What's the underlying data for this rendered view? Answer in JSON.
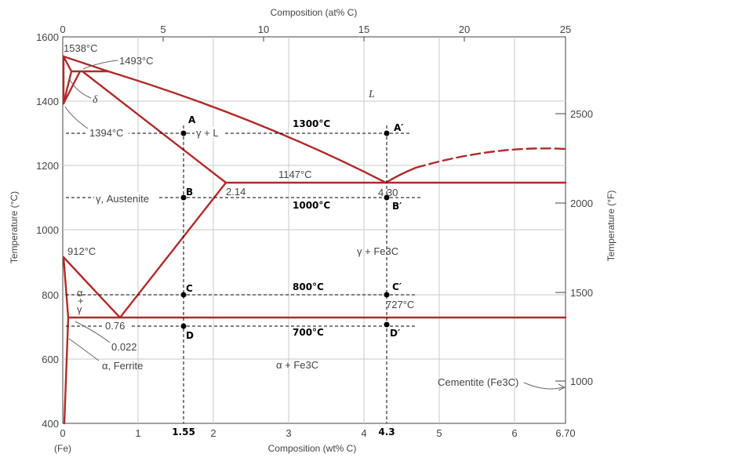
{
  "axes": {
    "top_label": "Composition (at% C)",
    "bottom_label": "Composition (wt% C)",
    "left_label": "Temperature (°C)",
    "right_label": "Temperature (°F)",
    "fe_label": "(Fe)",
    "top_ticks": [
      "0",
      "5",
      "10",
      "15",
      "20",
      "25"
    ],
    "bottom_ticks": [
      "0",
      "1",
      "2",
      "3",
      "4",
      "5",
      "6",
      "6.70"
    ],
    "bottom_ticks_bold": [
      "1.55",
      "4.3"
    ],
    "left_ticks": [
      "1600",
      "1400",
      "1200",
      "1000",
      "800",
      "600",
      "400"
    ],
    "right_ticks": [
      "2500",
      "2000",
      "1500",
      "1000"
    ]
  },
  "labels": {
    "t1538": "1538°C",
    "t1493": "1493°C",
    "t1394": "1394°C",
    "delta": "δ",
    "liquid": "L",
    "gamma_l": "γ + L",
    "t1147": "1147°C",
    "c214": "2.14",
    "c430": "4.30",
    "austenite": "γ, Austenite",
    "t912": "912°C",
    "gamma_fe3c": "γ + Fe3C",
    "alpha": "α",
    "plus": "+",
    "gamma": "γ",
    "t727": "727°C",
    "c076": "0.76",
    "c0022": "0.022",
    "ferrite": "α, Ferrite",
    "alpha_fe3c": "α + Fe3C",
    "cementite": "Cementite (Fe3C)"
  },
  "points": {
    "A": "A",
    "A_prime": "A′",
    "B": "B",
    "B_prime": "B′",
    "C": "C",
    "C_prime": "C′",
    "D": "D",
    "D_prime": "D′"
  },
  "isotherms": {
    "t1300": "1300°C",
    "t1000": "1000°C",
    "t800": "800°C",
    "t700": "700°C"
  }
}
